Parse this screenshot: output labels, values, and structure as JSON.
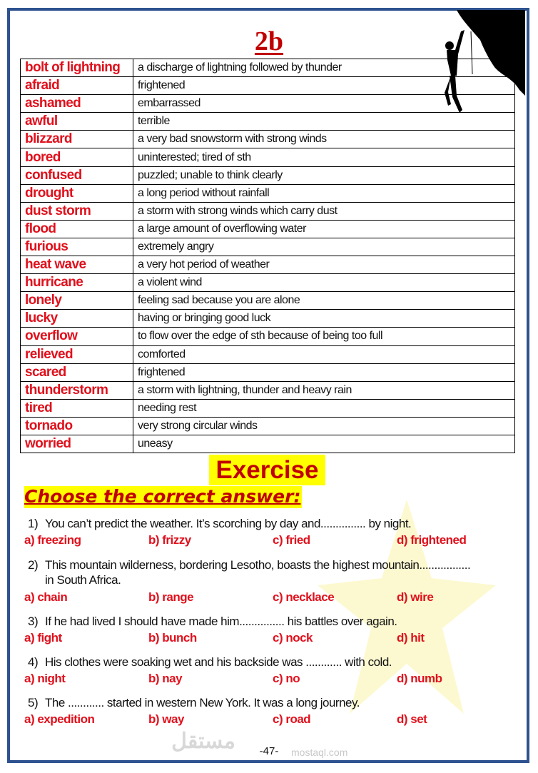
{
  "page_title": "2b",
  "vocabulary": [
    {
      "word": "bolt of lightning",
      "definition": "a discharge of lightning followed by thunder"
    },
    {
      "word": "afraid",
      "definition": "frightened"
    },
    {
      "word": "ashamed",
      "definition": "embarrassed"
    },
    {
      "word": "awful",
      "definition": "terrible"
    },
    {
      "word": "blizzard",
      "definition": "a very bad snowstorm with strong winds"
    },
    {
      "word": "bored",
      "definition": "uninterested; tired of sth"
    },
    {
      "word": "confused",
      "definition": "puzzled; unable to think clearly"
    },
    {
      "word": "drought",
      "definition": "a long period without rainfall"
    },
    {
      "word": "dust storm",
      "definition": "a storm with strong winds which carry dust"
    },
    {
      "word": "flood",
      "definition": "a large amount of overflowing water"
    },
    {
      "word": "furious",
      "definition": "extremely angry"
    },
    {
      "word": "heat wave",
      "definition": "a very hot period of weather"
    },
    {
      "word": "hurricane",
      "definition": "a violent wind"
    },
    {
      "word": "lonely",
      "definition": "feeling sad because you are alone"
    },
    {
      "word": "lucky",
      "definition": "having or bringing good luck"
    },
    {
      "word": "overflow",
      "definition": "to flow over the edge of sth because of being too full"
    },
    {
      "word": "relieved",
      "definition": "comforted"
    },
    {
      "word": "scared",
      "definition": "frightened"
    },
    {
      "word": "thunderstorm",
      "definition": "a storm with lightning, thunder and heavy rain"
    },
    {
      "word": "tired",
      "definition": "needing rest"
    },
    {
      "word": "tornado",
      "definition": "very strong circular winds"
    },
    {
      "word": "worried",
      "definition": "uneasy"
    }
  ],
  "exercise": {
    "heading": "Exercise",
    "instruction": "Choose the correct answer:",
    "questions": [
      {
        "num": "1)",
        "text": "You can’t predict the weather. It’s scorching by day and............... by night.",
        "cont": "",
        "options": [
          "a) freezing",
          "b) frizzy",
          "c) fried",
          "d) frightened"
        ]
      },
      {
        "num": "2)",
        "text": "This mountain wilderness, bordering Lesotho, boasts the highest mountain.................",
        "cont": "in South Africa.",
        "options": [
          "a) chain",
          "b) range",
          "c) necklace",
          "d) wire"
        ]
      },
      {
        "num": "3)",
        "text": "If he had lived I should have made him............... his battles over again.",
        "cont": "",
        "options": [
          "a) fight",
          "b) bunch",
          "c) nock",
          "d) hit"
        ]
      },
      {
        "num": "4)",
        "text": "His clothes were soaking wet and his backside was ............ with cold.",
        "cont": "",
        "options": [
          "a) night",
          "b) nay",
          "c) no",
          "d) numb"
        ]
      },
      {
        "num": "5)",
        "text": "The ............ started in western New York. It was a long journey.",
        "cont": "",
        "options": [
          "a) expedition",
          "b) way",
          "c) road",
          "d) set"
        ]
      }
    ]
  },
  "watermark": {
    "arabic": "مستقل",
    "latin": "mostaql.com"
  },
  "page_number": "-47-",
  "colors": {
    "border": "#2e528f",
    "accent_red": "#e0101c",
    "title_red": "#c00000",
    "highlight": "#ffff00"
  }
}
